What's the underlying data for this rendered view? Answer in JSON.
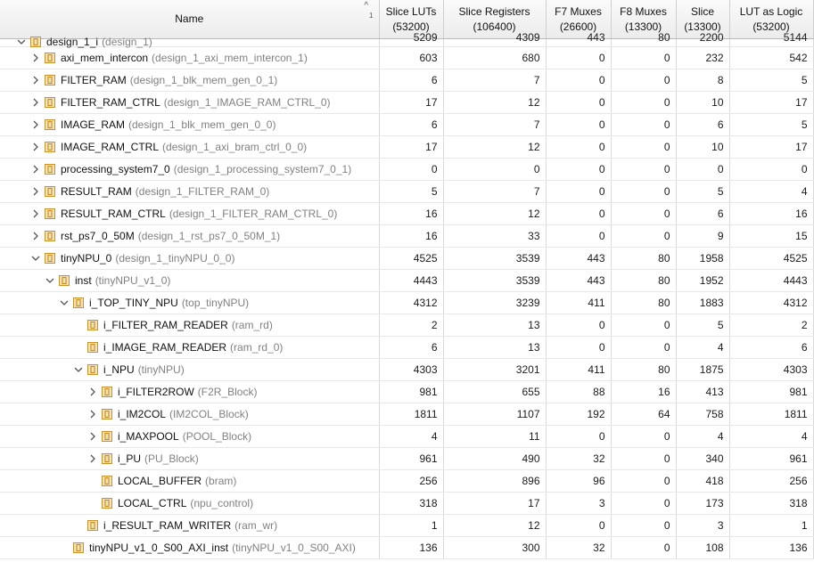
{
  "header": {
    "name": "Name",
    "sort_badge": "1",
    "columns": [
      {
        "label": "Slice LUTs",
        "sub": "(53200)"
      },
      {
        "label": "Slice Registers",
        "sub": "(106400)"
      },
      {
        "label": "F7 Muxes",
        "sub": "(26600)"
      },
      {
        "label": "F8 Muxes",
        "sub": "(13300)"
      },
      {
        "label": "Slice",
        "sub": "(13300)"
      },
      {
        "label": "LUT as Logic",
        "sub": "(53200)"
      }
    ]
  },
  "colors": {
    "icon_frame": "#c8922a",
    "icon_fill": "#f6e3b8",
    "module_text": "#808080"
  },
  "rows": [
    {
      "depth": 0,
      "toggle": "expanded",
      "instance": "design_1_i",
      "module": "(design_1)",
      "values": [
        "5209",
        "4309",
        "443",
        "80",
        "2200",
        "5144"
      ],
      "partial": true
    },
    {
      "depth": 1,
      "toggle": "collapsed",
      "instance": "axi_mem_intercon",
      "module": "(design_1_axi_mem_intercon_1)",
      "values": [
        "603",
        "680",
        "0",
        "0",
        "232",
        "542"
      ]
    },
    {
      "depth": 1,
      "toggle": "collapsed",
      "instance": "FILTER_RAM",
      "module": "(design_1_blk_mem_gen_0_1)",
      "values": [
        "6",
        "7",
        "0",
        "0",
        "8",
        "5"
      ]
    },
    {
      "depth": 1,
      "toggle": "collapsed",
      "instance": "FILTER_RAM_CTRL",
      "module": "(design_1_IMAGE_RAM_CTRL_0)",
      "values": [
        "17",
        "12",
        "0",
        "0",
        "10",
        "17"
      ]
    },
    {
      "depth": 1,
      "toggle": "collapsed",
      "instance": "IMAGE_RAM",
      "module": "(design_1_blk_mem_gen_0_0)",
      "values": [
        "6",
        "7",
        "0",
        "0",
        "6",
        "5"
      ]
    },
    {
      "depth": 1,
      "toggle": "collapsed",
      "instance": "IMAGE_RAM_CTRL",
      "module": "(design_1_axi_bram_ctrl_0_0)",
      "values": [
        "17",
        "12",
        "0",
        "0",
        "10",
        "17"
      ]
    },
    {
      "depth": 1,
      "toggle": "collapsed",
      "instance": "processing_system7_0",
      "module": "(design_1_processing_system7_0_1)",
      "values": [
        "0",
        "0",
        "0",
        "0",
        "0",
        "0"
      ]
    },
    {
      "depth": 1,
      "toggle": "collapsed",
      "instance": "RESULT_RAM",
      "module": "(design_1_FILTER_RAM_0)",
      "values": [
        "5",
        "7",
        "0",
        "0",
        "5",
        "4"
      ]
    },
    {
      "depth": 1,
      "toggle": "collapsed",
      "instance": "RESULT_RAM_CTRL",
      "module": "(design_1_FILTER_RAM_CTRL_0)",
      "values": [
        "16",
        "12",
        "0",
        "0",
        "6",
        "16"
      ]
    },
    {
      "depth": 1,
      "toggle": "collapsed",
      "instance": "rst_ps7_0_50M",
      "module": "(design_1_rst_ps7_0_50M_1)",
      "values": [
        "16",
        "33",
        "0",
        "0",
        "9",
        "15"
      ]
    },
    {
      "depth": 1,
      "toggle": "expanded",
      "instance": "tinyNPU_0",
      "module": "(design_1_tinyNPU_0_0)",
      "values": [
        "4525",
        "3539",
        "443",
        "80",
        "1958",
        "4525"
      ]
    },
    {
      "depth": 2,
      "toggle": "expanded",
      "instance": "inst",
      "module": "(tinyNPU_v1_0)",
      "values": [
        "4443",
        "3539",
        "443",
        "80",
        "1952",
        "4443"
      ]
    },
    {
      "depth": 3,
      "toggle": "expanded",
      "instance": "i_TOP_TINY_NPU",
      "module": "(top_tinyNPU)",
      "values": [
        "4312",
        "3239",
        "411",
        "80",
        "1883",
        "4312"
      ]
    },
    {
      "depth": 4,
      "toggle": "none",
      "instance": "i_FILTER_RAM_READER",
      "module": "(ram_rd)",
      "values": [
        "2",
        "13",
        "0",
        "0",
        "5",
        "2"
      ]
    },
    {
      "depth": 4,
      "toggle": "none",
      "instance": "i_IMAGE_RAM_READER",
      "module": "(ram_rd_0)",
      "values": [
        "6",
        "13",
        "0",
        "0",
        "4",
        "6"
      ]
    },
    {
      "depth": 4,
      "toggle": "expanded",
      "instance": "i_NPU",
      "module": "(tinyNPU)",
      "values": [
        "4303",
        "3201",
        "411",
        "80",
        "1875",
        "4303"
      ]
    },
    {
      "depth": 5,
      "toggle": "collapsed",
      "instance": "i_FILTER2ROW",
      "module": "(F2R_Block)",
      "values": [
        "981",
        "655",
        "88",
        "16",
        "413",
        "981"
      ]
    },
    {
      "depth": 5,
      "toggle": "collapsed",
      "instance": "i_IM2COL",
      "module": "(IM2COL_Block)",
      "values": [
        "1811",
        "1107",
        "192",
        "64",
        "758",
        "1811"
      ]
    },
    {
      "depth": 5,
      "toggle": "collapsed",
      "instance": "i_MAXPOOL",
      "module": "(POOL_Block)",
      "values": [
        "4",
        "11",
        "0",
        "0",
        "4",
        "4"
      ]
    },
    {
      "depth": 5,
      "toggle": "collapsed",
      "instance": "i_PU",
      "module": "(PU_Block)",
      "values": [
        "961",
        "490",
        "32",
        "0",
        "340",
        "961"
      ]
    },
    {
      "depth": 5,
      "toggle": "none",
      "instance": "LOCAL_BUFFER",
      "module": "(bram)",
      "values": [
        "256",
        "896",
        "96",
        "0",
        "418",
        "256"
      ]
    },
    {
      "depth": 5,
      "toggle": "none",
      "instance": "LOCAL_CTRL",
      "module": "(npu_control)",
      "values": [
        "318",
        "17",
        "3",
        "0",
        "173",
        "318"
      ]
    },
    {
      "depth": 4,
      "toggle": "none",
      "instance": "i_RESULT_RAM_WRITER",
      "module": "(ram_wr)",
      "values": [
        "1",
        "12",
        "0",
        "0",
        "3",
        "1"
      ]
    },
    {
      "depth": 3,
      "toggle": "none",
      "instance": "tinyNPU_v1_0_S00_AXI_inst",
      "module": "(tinyNPU_v1_0_S00_AXI)",
      "values": [
        "136",
        "300",
        "32",
        "0",
        "108",
        "136"
      ]
    }
  ]
}
